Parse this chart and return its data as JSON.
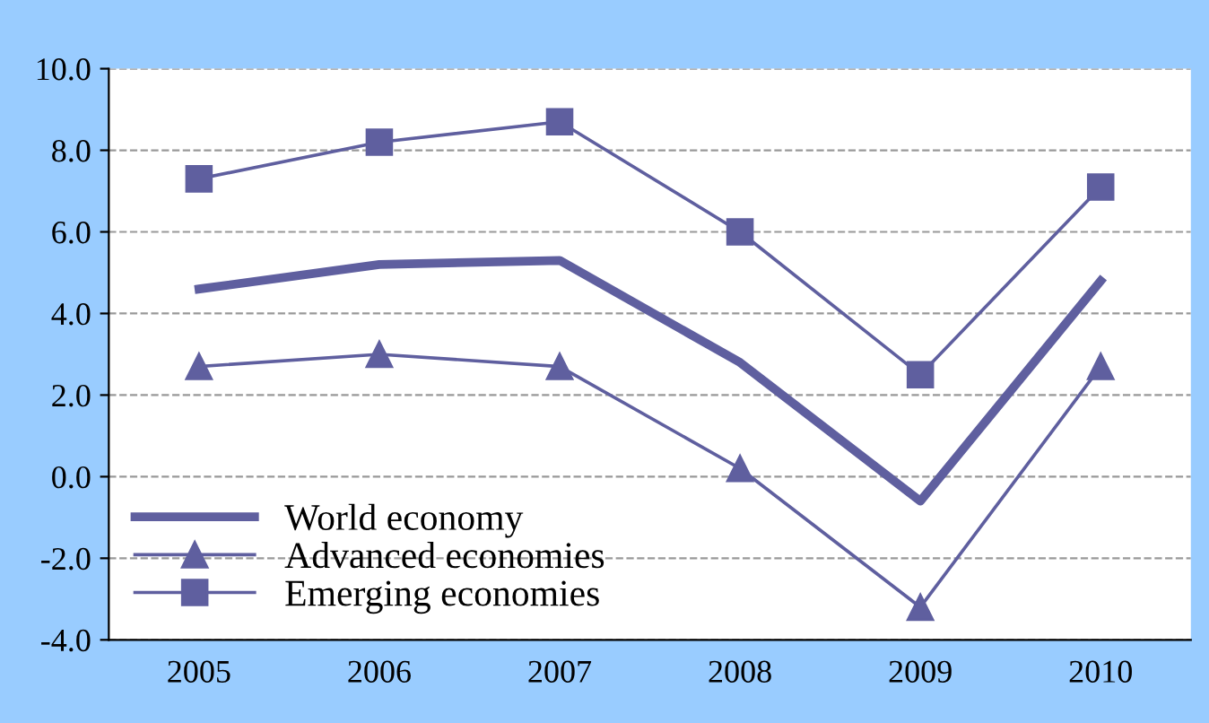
{
  "chart_data": {
    "type": "line",
    "categories": [
      "2005",
      "2006",
      "2007",
      "2008",
      "2009",
      "2010"
    ],
    "series": [
      {
        "name": "World economy",
        "color": "#5f5f9f",
        "values": [
          4.6,
          5.2,
          5.3,
          2.8,
          -0.6,
          4.8
        ],
        "marker": "none"
      },
      {
        "name": "Advanced economies",
        "color": "#5f5f9f",
        "values": [
          2.7,
          3.0,
          2.7,
          0.2,
          -3.2,
          2.7
        ],
        "marker": "triangle"
      },
      {
        "name": "Emerging economies",
        "color": "#5f5f9f",
        "values": [
          7.3,
          8.2,
          8.7,
          6.0,
          2.5,
          7.1
        ],
        "marker": "square"
      }
    ],
    "ylim": [
      -4,
      10
    ],
    "yticks": [
      {
        "value": -4,
        "label": "-4.0"
      },
      {
        "value": -2,
        "label": "-2.0"
      },
      {
        "value": 0,
        "label": "0.0"
      },
      {
        "value": 2,
        "label": "2.0"
      },
      {
        "value": 4,
        "label": "4.0"
      },
      {
        "value": 6,
        "label": "6.0"
      },
      {
        "value": 8,
        "label": "8.0"
      },
      {
        "value": 10,
        "label": "10.0"
      }
    ],
    "grid": "y",
    "legend": "bottom left",
    "line_style": "solid"
  }
}
